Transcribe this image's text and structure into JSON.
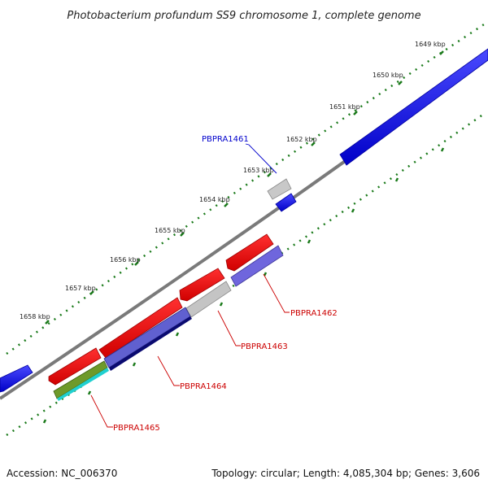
{
  "title": "Photobacterium profundum SS9 chromosome 1, complete genome",
  "accession": "Accession: NC_006370",
  "summary": "Topology: circular; Length: 4,085,304 bp; Genes: 3,606",
  "scale_labels": [
    "1649 kbp",
    "1650 kbp",
    "1651 kbp",
    "1652 kbp",
    "1653 kbp",
    "1654 kbp",
    "1655 kbp",
    "1656 kbp",
    "1657 kbp",
    "1658 kbp"
  ],
  "gene_labels": [
    {
      "text": "PBPRA1461",
      "color": "#0000cc"
    },
    {
      "text": "PBPRA1462",
      "color": "#cc0000"
    },
    {
      "text": "PBPRA1463",
      "color": "#cc0000"
    },
    {
      "text": "PBPRA1464",
      "color": "#cc0000"
    },
    {
      "text": "PBPRA1465",
      "color": "#cc0000"
    }
  ],
  "colors": {
    "forward_gene": "#ff0000",
    "reverse_gene": "#0000ff",
    "gray_gene": "#c0c0c0",
    "backbone": "#7a7a7a",
    "tick": "#1a7a1a"
  }
}
